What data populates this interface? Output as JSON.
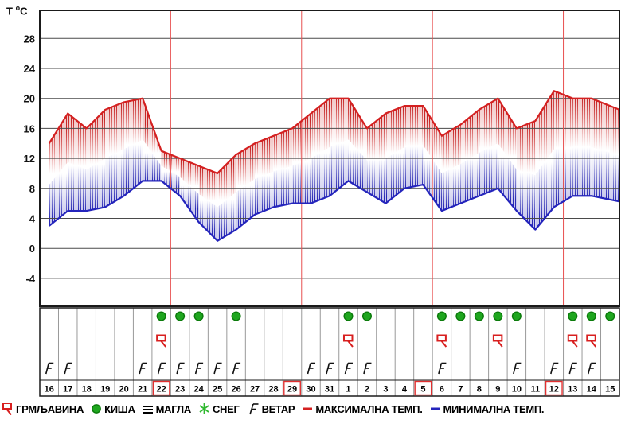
{
  "axis": {
    "t": "Т",
    "deg": "o",
    "unit": "С"
  },
  "chart_data": {
    "type": "line",
    "title": "Т °C temperature meteogram with weather events",
    "ylabel": "Т °C",
    "yticks": [
      28,
      24,
      20,
      16,
      12,
      8,
      4,
      0,
      -4
    ],
    "ylim": [
      -7.7,
      31.7
    ],
    "grid": "horizontal",
    "days": [
      "16",
      "17",
      "18",
      "19",
      "20",
      "21",
      "22",
      "23",
      "24",
      "25",
      "26",
      "27",
      "28",
      "29",
      "30",
      "31",
      "1",
      "2",
      "3",
      "4",
      "5",
      "6",
      "7",
      "8",
      "9",
      "10",
      "11",
      "12",
      "13",
      "14",
      "15"
    ],
    "series": [
      {
        "name": "МАКСИМАЛНА ТЕМП.",
        "color": "#d42020",
        "values": [
          14,
          18,
          16,
          18.5,
          19.5,
          20,
          13,
          12,
          11,
          10,
          12.5,
          14,
          15,
          16,
          18,
          20,
          20,
          16,
          18,
          19,
          19,
          15,
          16.5,
          18.5,
          20,
          16,
          17,
          21,
          20,
          20,
          19
        ]
      },
      {
        "name": "МИНИМАЛНА ТЕМП.",
        "color": "#2424bc",
        "values": [
          3,
          5,
          5,
          5.5,
          7,
          9,
          9,
          7,
          3.5,
          1,
          2.5,
          4.5,
          5.5,
          6,
          6,
          7,
          9,
          7.5,
          6,
          8,
          8.5,
          5,
          6,
          7,
          8,
          5,
          2.5,
          5.5,
          7,
          7,
          6.5
        ]
      }
    ],
    "band": "vertical hatch lines between max and min, red near max fading to white at mid then blue near min",
    "week_separators_after_index": [
      6,
      13,
      20,
      27
    ],
    "markers": {
      "rain": [
        6,
        7,
        8,
        10,
        16,
        17,
        21,
        22,
        23,
        24,
        25,
        28,
        29,
        30
      ],
      "thunder": [
        6,
        16,
        21,
        24,
        28,
        29
      ],
      "wind": [
        0,
        1,
        5,
        6,
        7,
        8,
        9,
        10,
        14,
        15,
        16,
        17,
        21,
        25,
        27,
        28,
        29
      ],
      "boxed_red": [
        6,
        13,
        20,
        27
      ]
    }
  },
  "legend": {
    "items": [
      {
        "icon": "thunder-icon",
        "label": "ГРМЉАВИНА"
      },
      {
        "icon": "rain-icon",
        "label": "КИША"
      },
      {
        "icon": "fog-icon",
        "label": "МАГЛА"
      },
      {
        "icon": "snow-icon",
        "label": "СНЕГ"
      },
      {
        "icon": "wind-icon",
        "label": "ВЕТАР"
      },
      {
        "icon": "max-temp-line",
        "label": "МАКСИМАЛНА ТЕМП."
      },
      {
        "icon": "min-temp-line",
        "label": "МИНИМАЛНА ТЕМП."
      }
    ]
  },
  "colors": {
    "max_line": "#d42020",
    "min_line": "#2424bc",
    "week_line": "#e85050",
    "grid": "#4a4a4a",
    "border": "#1a1a1a",
    "separator": "#999999",
    "rain_fill": "#1fa61f",
    "rain_stroke": "#0b7a0b",
    "thunder": "#d81f1f",
    "snow": "#2fb82f",
    "wind": "#111111",
    "sunday_box": "#e23030"
  }
}
